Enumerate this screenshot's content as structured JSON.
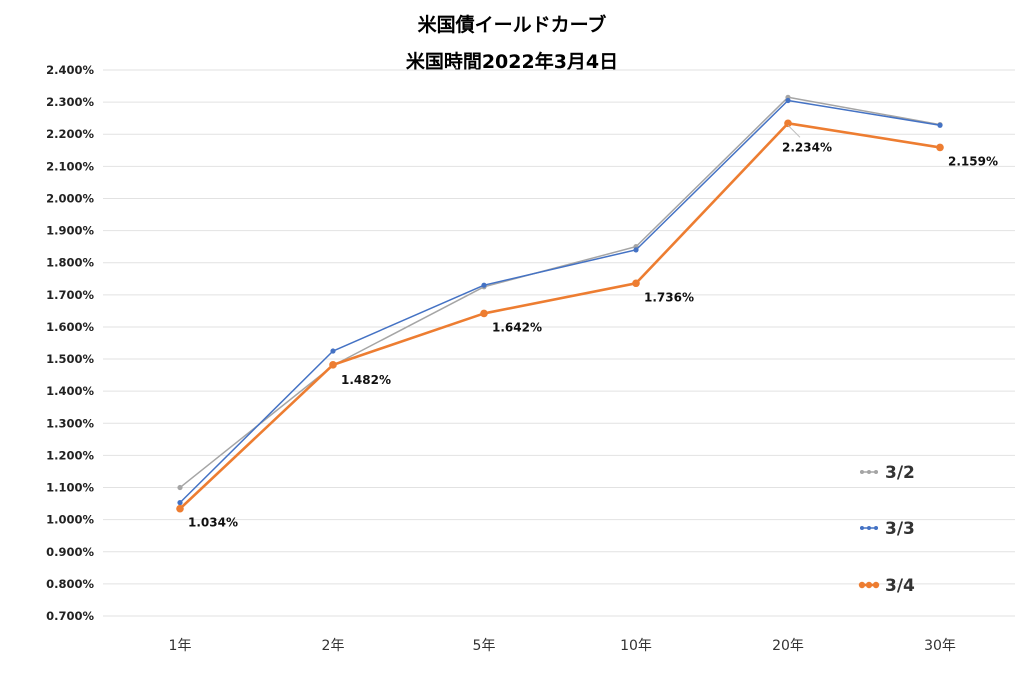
{
  "chart_data": {
    "type": "line",
    "title": "米国債イールドカーブ",
    "subtitle": "米国時間2022年3月4日",
    "categories": [
      "1年",
      "2年",
      "5年",
      "10年",
      "20年",
      "30年"
    ],
    "y_ticks": [
      "0.700%",
      "0.800%",
      "0.900%",
      "1.000%",
      "1.100%",
      "1.200%",
      "1.300%",
      "1.400%",
      "1.500%",
      "1.600%",
      "1.700%",
      "1.800%",
      "1.900%",
      "2.000%",
      "2.100%",
      "2.200%",
      "2.300%",
      "2.400%"
    ],
    "ylim": [
      0.7,
      2.4
    ],
    "grid": true,
    "legend_position": "bottom-right",
    "series": [
      {
        "name": "3/2",
        "color": "#a5a5a5",
        "values": [
          1.1,
          1.48,
          1.725,
          1.85,
          2.315,
          2.23
        ]
      },
      {
        "name": "3/3",
        "color": "#4472c4",
        "values": [
          1.053,
          1.525,
          1.73,
          1.84,
          2.305,
          2.228
        ]
      },
      {
        "name": "3/4",
        "color": "#ed7d31",
        "values": [
          1.034,
          1.482,
          1.642,
          1.736,
          2.234,
          2.159
        ],
        "labels": [
          "1.034%",
          "1.482%",
          "1.642%",
          "1.736%",
          "2.234%",
          "2.159%"
        ]
      }
    ]
  }
}
